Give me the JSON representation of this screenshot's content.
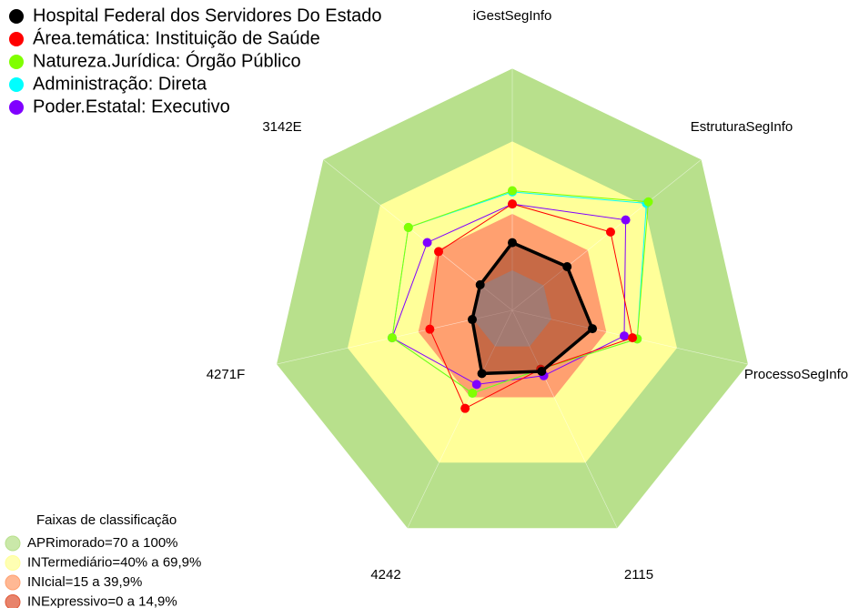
{
  "chart_data": {
    "type": "radar",
    "axes": [
      "iGestSegInfo",
      "EstruturaSegInfo",
      "ProcessoSegInfo",
      "2115",
      "4242",
      "4271F",
      "3142E"
    ],
    "rlim": [
      0,
      100
    ],
    "series": [
      {
        "name": "Hospital Federal dos Servidores Do Estado",
        "color": "#000000",
        "values": [
          28,
          29,
          34,
          28,
          29,
          17,
          17
        ]
      },
      {
        "name": "Área.temática: Instituição de Saúde",
        "color": "#ff0000",
        "values": [
          44,
          52,
          51,
          27,
          45,
          35,
          39
        ]
      },
      {
        "name": "Natureza.Jurídica: Órgão Público",
        "color": "#80ff00",
        "values": [
          49.5,
          72,
          53,
          27,
          38,
          51,
          55
        ]
      },
      {
        "name": "Administração: Direta",
        "color": "#00ffff",
        "values": [
          49,
          71,
          53,
          27,
          38,
          51,
          55
        ]
      },
      {
        "name": "Poder.Estatal: Executivo",
        "color": "#8000ff",
        "values": [
          44,
          60,
          47.5,
          30,
          34,
          51,
          45
        ]
      }
    ],
    "band_legend_title": "Faixas de classificação",
    "bands": [
      {
        "name": "APRimorado=70 a 100%",
        "color": "#b8e08c",
        "from": 70,
        "to": 100
      },
      {
        "name": "INTermediário=40% a 69,9%",
        "color": "#ffff99",
        "from": 40,
        "to": 69.9
      },
      {
        "name": "INIcial=15 a 39,9%",
        "color": "#ffa070",
        "from": 15,
        "to": 39.9
      },
      {
        "name": "INExpressivo=0 a 14,9%",
        "color": "#e05a3a",
        "from": 0,
        "to": 14.9
      }
    ]
  }
}
